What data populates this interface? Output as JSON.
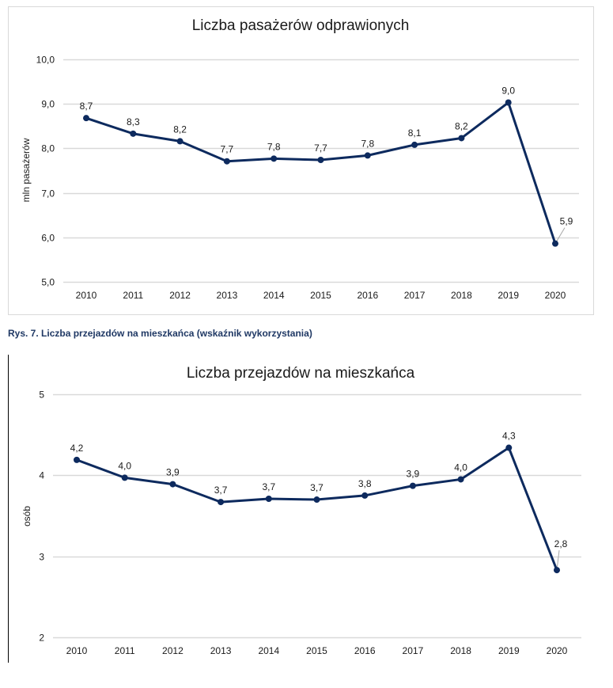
{
  "caption": "Rys. 7. Liczba przejazdów na mieszkańca (wskaźnik wykorzystania)",
  "colors": {
    "series": "#0d2a5e",
    "grid": "#d9d9d9",
    "frame": "#d9d9d9",
    "caption": "#1f3864",
    "leader": "#a6a6a6"
  },
  "chart_data": [
    {
      "type": "line",
      "title": "Liczba pasażerów odprawionych",
      "xlabel": "",
      "ylabel": "mln pasażerów",
      "categories": [
        "2010",
        "2011",
        "2012",
        "2013",
        "2014",
        "2015",
        "2016",
        "2017",
        "2018",
        "2019",
        "2020"
      ],
      "series": [
        {
          "name": "Liczba pasażerów odprawionych",
          "values": [
            8.68,
            8.33,
            8.16,
            7.71,
            7.77,
            7.74,
            7.84,
            8.08,
            8.23,
            9.03,
            5.86
          ],
          "labels": [
            "8,7",
            "8,3",
            "8,2",
            "7,7",
            "7,8",
            "7,7",
            "7,8",
            "8,1",
            "8,2",
            "9,0",
            "5,9"
          ]
        }
      ],
      "ylim": [
        5.0,
        10.0
      ],
      "yticks": [
        5.0,
        6.0,
        7.0,
        8.0,
        9.0,
        10.0
      ],
      "ytick_labels": [
        "5,0",
        "6,0",
        "7,0",
        "8,0",
        "9,0",
        "10,0"
      ],
      "grid": true,
      "legend": "none"
    },
    {
      "type": "line",
      "title": "Liczba przejazdów na mieszkańca",
      "xlabel": "",
      "ylabel": "osób",
      "categories": [
        "2010",
        "2011",
        "2012",
        "2013",
        "2014",
        "2015",
        "2016",
        "2017",
        "2018",
        "2019",
        "2020"
      ],
      "series": [
        {
          "name": "Liczba przejazdów na mieszkańca",
          "values": [
            4.19,
            3.97,
            3.89,
            3.67,
            3.71,
            3.7,
            3.75,
            3.87,
            3.95,
            4.34,
            2.83
          ],
          "labels": [
            "4,2",
            "4,0",
            "3,9",
            "3,7",
            "3,7",
            "3,7",
            "3,8",
            "3,9",
            "4,0",
            "4,3",
            "2,8"
          ]
        }
      ],
      "ylim": [
        2,
        5
      ],
      "yticks": [
        2,
        3,
        4,
        5
      ],
      "ytick_labels": [
        "2",
        "3",
        "4",
        "5"
      ],
      "grid": true,
      "legend": "none"
    }
  ]
}
